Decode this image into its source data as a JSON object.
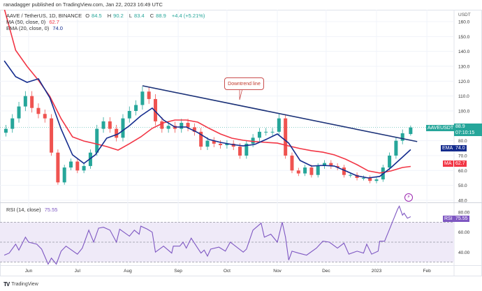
{
  "header": {
    "published": "ranadagger published on TradingView.com, Jan 22, 2023 16:49 UTC"
  },
  "legend": {
    "symbol": "AAVE / TetherUS, 1D, BINANCE",
    "o_label": "O",
    "o": "84.5",
    "h_label": "H",
    "h": "90.2",
    "l_label": "L",
    "l": "83.4",
    "c_label": "C",
    "c": "88.9",
    "change": "+4.4 (+5.21%)",
    "ma_label": "MA (50, close, 0)",
    "ma_value": "62.7",
    "ema_label": "EMA (20, close, 0)",
    "ema_value": "74.0",
    "rsi_label": "RSI (14, close)",
    "rsi_value": "75.55"
  },
  "price_axis": {
    "unit": "USDT",
    "ticks": [
      {
        "v": 160,
        "label": "160.0"
      },
      {
        "v": 150,
        "label": "150.0"
      },
      {
        "v": 140,
        "label": "140.0"
      },
      {
        "v": 130,
        "label": "130.0"
      },
      {
        "v": 120,
        "label": "120.0"
      },
      {
        "v": 110,
        "label": "110.0"
      },
      {
        "v": 100,
        "label": "100.0"
      },
      {
        "v": 80,
        "label": "80.0"
      },
      {
        "v": 70,
        "label": "70.0"
      },
      {
        "v": 60,
        "label": "60.0"
      },
      {
        "v": 50,
        "label": "50.0"
      },
      {
        "v": 40,
        "label": "40.0"
      }
    ]
  },
  "rsi_axis": {
    "ticks": [
      {
        "v": 80,
        "label": "80.00"
      },
      {
        "v": 60,
        "label": "60.00"
      },
      {
        "v": 40,
        "label": "40.00"
      }
    ]
  },
  "time_axis": {
    "ticks": [
      {
        "date": "2022-06-01",
        "label": "Jun"
      },
      {
        "date": "2022-07-01",
        "label": "Jul"
      },
      {
        "date": "2022-08-01",
        "label": "Aug"
      },
      {
        "date": "2022-09-01",
        "label": "Sep"
      },
      {
        "date": "2022-10-01",
        "label": "Oct"
      },
      {
        "date": "2022-11-01",
        "label": "Nov"
      },
      {
        "date": "2022-12-01",
        "label": "Dec"
      },
      {
        "date": "2023-01-01",
        "label": "2023"
      },
      {
        "date": "2023-02-01",
        "label": "Feb"
      }
    ]
  },
  "tags": {
    "symbol_label": "AAVEUSDT",
    "price": "88.9",
    "countdown": "07:10:15",
    "ema_label": "EMA",
    "ema_value": "74.0",
    "ma_label": "MA",
    "ma_value": "62.7",
    "rsi_label": "RSI",
    "rsi_value": "75.55"
  },
  "annotation": {
    "text": "Downtrend line"
  },
  "footer": {
    "logo": "TradingView"
  },
  "colors": {
    "up": "#26a69a",
    "down": "#ef5350",
    "ma": "#f23645",
    "ema": "#142c8e",
    "trendline": "#1c3278",
    "rsi": "#7e57c2",
    "rsi_band": "#efeaf8"
  },
  "chart_data": {
    "type": "candlestick",
    "symbol": "AAVE / TetherUS",
    "interval": "1D",
    "ylim": [
      40,
      165
    ],
    "rsi_ylim": [
      20,
      90
    ],
    "grid": true,
    "closes": [
      [
        "2022-05-18",
        88
      ],
      [
        "2022-05-22",
        95
      ],
      [
        "2022-05-26",
        103
      ],
      [
        "2022-05-30",
        110
      ],
      [
        "2022-06-03",
        102
      ],
      [
        "2022-06-07",
        98
      ],
      [
        "2022-06-11",
        95
      ],
      [
        "2022-06-15",
        72
      ],
      [
        "2022-06-19",
        52
      ],
      [
        "2022-06-23",
        62
      ],
      [
        "2022-06-27",
        66
      ],
      [
        "2022-07-01",
        60
      ],
      [
        "2022-07-05",
        63
      ],
      [
        "2022-07-09",
        72
      ],
      [
        "2022-07-13",
        88
      ],
      [
        "2022-07-17",
        93
      ],
      [
        "2022-07-21",
        88
      ],
      [
        "2022-07-25",
        82
      ],
      [
        "2022-07-29",
        95
      ],
      [
        "2022-08-02",
        100
      ],
      [
        "2022-08-06",
        104
      ],
      [
        "2022-08-10",
        113
      ],
      [
        "2022-08-14",
        108
      ],
      [
        "2022-08-18",
        93
      ],
      [
        "2022-08-22",
        88
      ],
      [
        "2022-08-26",
        90
      ],
      [
        "2022-08-30",
        88
      ],
      [
        "2022-09-03",
        92
      ],
      [
        "2022-09-07",
        89
      ],
      [
        "2022-09-11",
        86
      ],
      [
        "2022-09-15",
        76
      ],
      [
        "2022-09-19",
        80
      ],
      [
        "2022-09-23",
        78
      ],
      [
        "2022-09-27",
        77
      ],
      [
        "2022-10-01",
        78
      ],
      [
        "2022-10-05",
        76
      ],
      [
        "2022-10-09",
        70
      ],
      [
        "2022-10-13",
        78
      ],
      [
        "2022-10-17",
        82
      ],
      [
        "2022-10-21",
        86
      ],
      [
        "2022-10-25",
        86
      ],
      [
        "2022-10-29",
        86
      ],
      [
        "2022-11-02",
        95
      ],
      [
        "2022-11-06",
        70
      ],
      [
        "2022-11-10",
        60
      ],
      [
        "2022-11-14",
        58
      ],
      [
        "2022-11-18",
        62
      ],
      [
        "2022-11-22",
        57
      ],
      [
        "2022-11-26",
        63
      ],
      [
        "2022-11-30",
        65
      ],
      [
        "2022-12-04",
        63
      ],
      [
        "2022-12-08",
        62
      ],
      [
        "2022-12-12",
        57
      ],
      [
        "2022-12-16",
        57
      ],
      [
        "2022-12-20",
        55
      ],
      [
        "2022-12-24",
        55
      ],
      [
        "2022-12-28",
        53
      ],
      [
        "2023-01-01",
        54
      ],
      [
        "2023-01-05",
        62
      ],
      [
        "2023-01-09",
        70
      ],
      [
        "2023-01-13",
        80
      ],
      [
        "2023-01-17",
        85
      ],
      [
        "2023-01-22",
        88.9
      ]
    ],
    "last": {
      "open": 84.5,
      "high": 90.2,
      "low": 83.4,
      "close": 88.9
    },
    "ma50": [
      [
        "2022-05-24",
        140.8
      ],
      [
        "2022-05-31",
        130
      ],
      [
        "2022-06-07",
        120.6
      ],
      [
        "2022-06-14",
        109.8
      ],
      [
        "2022-06-21",
        94.8
      ],
      [
        "2022-06-28",
        82.6
      ],
      [
        "2022-07-05",
        79.8
      ],
      [
        "2022-07-12",
        78
      ],
      [
        "2022-07-19",
        76.1
      ],
      [
        "2022-07-26",
        73.7
      ],
      [
        "2022-08-02",
        78
      ],
      [
        "2022-08-09",
        82.6
      ],
      [
        "2022-08-16",
        88.3
      ],
      [
        "2022-08-23",
        92
      ],
      [
        "2022-08-30",
        93.9
      ],
      [
        "2022-09-06",
        93.9
      ],
      [
        "2022-09-13",
        92.5
      ],
      [
        "2022-09-20",
        88.3
      ],
      [
        "2022-09-27",
        84.5
      ],
      [
        "2022-10-04",
        81.7
      ],
      [
        "2022-10-11",
        80.3
      ],
      [
        "2022-10-18",
        79.4
      ],
      [
        "2022-10-25",
        78.9
      ],
      [
        "2022-11-01",
        78.4
      ],
      [
        "2022-11-08",
        76.5
      ],
      [
        "2022-11-15",
        74.7
      ],
      [
        "2022-11-22",
        73.3
      ],
      [
        "2022-11-29",
        72.3
      ],
      [
        "2022-12-06",
        70.5
      ],
      [
        "2022-12-13",
        67.6
      ],
      [
        "2022-12-20",
        63.9
      ],
      [
        "2022-12-27",
        59.7
      ],
      [
        "2023-01-03",
        58.3
      ],
      [
        "2023-01-10",
        59.7
      ],
      [
        "2023-01-17",
        62
      ],
      [
        "2023-01-22",
        62.7
      ]
    ],
    "ema20": [
      [
        "2022-05-17",
        133.7
      ],
      [
        "2022-05-24",
        123
      ],
      [
        "2022-05-31",
        119.2
      ],
      [
        "2022-06-07",
        121.6
      ],
      [
        "2022-06-14",
        108.9
      ],
      [
        "2022-06-21",
        87.8
      ],
      [
        "2022-06-28",
        70.5
      ],
      [
        "2022-07-05",
        64.8
      ],
      [
        "2022-07-12",
        70.5
      ],
      [
        "2022-07-19",
        81.7
      ],
      [
        "2022-07-26",
        84.5
      ],
      [
        "2022-08-02",
        90.1
      ],
      [
        "2022-08-09",
        96.7
      ],
      [
        "2022-08-16",
        101.9
      ],
      [
        "2022-08-23",
        93.9
      ],
      [
        "2022-08-30",
        89.2
      ],
      [
        "2022-09-06",
        89.2
      ],
      [
        "2022-09-13",
        85.5
      ],
      [
        "2022-09-20",
        80.8
      ],
      [
        "2022-09-27",
        78.9
      ],
      [
        "2022-10-04",
        77.5
      ],
      [
        "2022-10-11",
        76.5
      ],
      [
        "2022-10-18",
        77.5
      ],
      [
        "2022-10-25",
        80.8
      ],
      [
        "2022-11-01",
        84.5
      ],
      [
        "2022-11-08",
        78.4
      ],
      [
        "2022-11-15",
        66.7
      ],
      [
        "2022-11-22",
        63
      ],
      [
        "2022-11-29",
        63.4
      ],
      [
        "2022-12-06",
        63
      ],
      [
        "2022-12-13",
        59.7
      ],
      [
        "2022-12-20",
        56.4
      ],
      [
        "2022-12-27",
        55
      ],
      [
        "2023-01-03",
        56
      ],
      [
        "2023-01-10",
        62
      ],
      [
        "2023-01-17",
        69
      ],
      [
        "2023-01-22",
        74
      ]
    ],
    "trendline": [
      [
        "2022-08-10",
        116.9
      ],
      [
        "2023-01-26",
        79.4
      ]
    ],
    "rsi14": [
      [
        "2022-05-17",
        37
      ],
      [
        "2022-05-20",
        39
      ],
      [
        "2022-05-24",
        48
      ],
      [
        "2022-05-26",
        42
      ],
      [
        "2022-05-30",
        55
      ],
      [
        "2022-06-01",
        50
      ],
      [
        "2022-06-06",
        48
      ],
      [
        "2022-06-09",
        43
      ],
      [
        "2022-06-13",
        28
      ],
      [
        "2022-06-15",
        34
      ],
      [
        "2022-06-18",
        28
      ],
      [
        "2022-06-21",
        41
      ],
      [
        "2022-06-24",
        46
      ],
      [
        "2022-07-01",
        38
      ],
      [
        "2022-07-04",
        44
      ],
      [
        "2022-07-08",
        62
      ],
      [
        "2022-07-11",
        50
      ],
      [
        "2022-07-14",
        64
      ],
      [
        "2022-07-17",
        65
      ],
      [
        "2022-07-21",
        62
      ],
      [
        "2022-07-25",
        50
      ],
      [
        "2022-07-27",
        63
      ],
      [
        "2022-08-02",
        56
      ],
      [
        "2022-08-05",
        62
      ],
      [
        "2022-08-08",
        58
      ],
      [
        "2022-08-09",
        66
      ],
      [
        "2022-08-13",
        63
      ],
      [
        "2022-08-16",
        60
      ],
      [
        "2022-08-18",
        40
      ],
      [
        "2022-08-23",
        46
      ],
      [
        "2022-08-28",
        39
      ],
      [
        "2022-08-29",
        46
      ],
      [
        "2022-09-02",
        46
      ],
      [
        "2022-09-04",
        50
      ],
      [
        "2022-09-06",
        44
      ],
      [
        "2022-09-09",
        54
      ],
      [
        "2022-09-13",
        44
      ],
      [
        "2022-09-15",
        39
      ],
      [
        "2022-09-17",
        42
      ],
      [
        "2022-09-19",
        36
      ],
      [
        "2022-09-21",
        43
      ],
      [
        "2022-09-26",
        45
      ],
      [
        "2022-09-30",
        41
      ],
      [
        "2022-10-03",
        50
      ],
      [
        "2022-10-11",
        40
      ],
      [
        "2022-10-13",
        43
      ],
      [
        "2022-10-17",
        62
      ],
      [
        "2022-10-22",
        69
      ],
      [
        "2022-10-24",
        55
      ],
      [
        "2022-10-28",
        58
      ],
      [
        "2022-11-01",
        50
      ],
      [
        "2022-11-04",
        70
      ],
      [
        "2022-11-06",
        55
      ],
      [
        "2022-11-08",
        32
      ],
      [
        "2022-11-10",
        41
      ],
      [
        "2022-11-14",
        39
      ],
      [
        "2022-11-19",
        37
      ],
      [
        "2022-11-25",
        44
      ],
      [
        "2022-11-29",
        51
      ],
      [
        "2022-12-03",
        50
      ],
      [
        "2022-12-08",
        44
      ],
      [
        "2022-12-12",
        49
      ],
      [
        "2022-12-15",
        38
      ],
      [
        "2022-12-20",
        41
      ],
      [
        "2022-12-24",
        39
      ],
      [
        "2022-12-26",
        48
      ],
      [
        "2022-12-29",
        38
      ],
      [
        "2023-01-02",
        41
      ],
      [
        "2023-01-03",
        51
      ],
      [
        "2023-01-06",
        51
      ],
      [
        "2023-01-09",
        63
      ],
      [
        "2023-01-14",
        83
      ],
      [
        "2023-01-15",
        86
      ],
      [
        "2023-01-17",
        77
      ],
      [
        "2023-01-18",
        79
      ],
      [
        "2023-01-20",
        74
      ],
      [
        "2023-01-22",
        75.55
      ]
    ],
    "rsi_levels": [
      70,
      50,
      30
    ]
  }
}
